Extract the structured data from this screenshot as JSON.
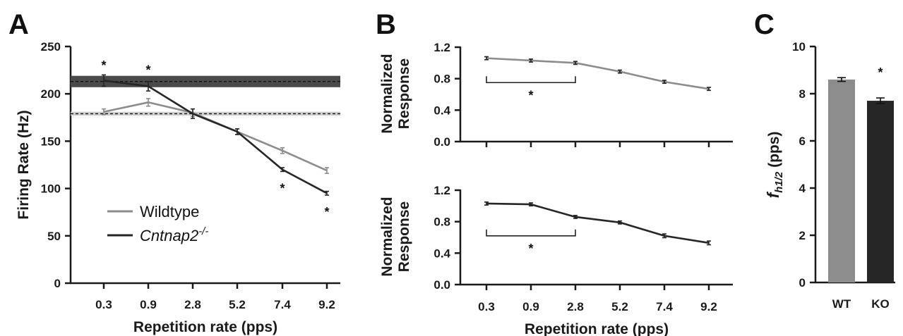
{
  "colors": {
    "wildtype": "#8c8c8c",
    "knockout": "#262626",
    "band_ko": "#4a4a4a",
    "band_wt": "#cfcfcf",
    "bar_wt": "#8c8c8c",
    "bar_ko": "#262626"
  },
  "chart_data": [
    {
      "panel": "A",
      "type": "line",
      "categories": [
        "0.3",
        "0.9",
        "2.8",
        "5.2",
        "7.4",
        "9.2"
      ],
      "xlabel": "Repetition rate (pps)",
      "ylabel": "Firing Rate (Hz)",
      "ylim": [
        0,
        250
      ],
      "yticks": [
        "0",
        "50",
        "100",
        "150",
        "200",
        "250"
      ],
      "series": [
        {
          "name": "Wildtype",
          "values": [
            181,
            191,
            180,
            160,
            140,
            119
          ],
          "errors": [
            3,
            4,
            4,
            3,
            3,
            3
          ]
        },
        {
          "name": "Cntnap2",
          "name_sup": "-/-",
          "values": [
            214,
            208,
            179,
            160,
            120,
            95
          ],
          "errors": [
            6,
            5,
            5,
            3,
            2,
            2
          ]
        }
      ],
      "bands": [
        {
          "series": "Cntnap2",
          "mean": 213,
          "low": 207,
          "high": 219
        },
        {
          "series": "Wildtype",
          "mean": 179,
          "low": 177,
          "high": 181
        }
      ],
      "stars": [
        {
          "category": "0.3",
          "value": 230,
          "label": "*"
        },
        {
          "category": "0.9",
          "value": 225,
          "label": "*"
        },
        {
          "category": "7.4",
          "value": 100,
          "label": "*"
        },
        {
          "category": "9.2",
          "value": 75,
          "label": "*"
        }
      ],
      "legend": "bottom-left",
      "grid": false
    },
    {
      "panel": "B",
      "subpanel": "top",
      "type": "line",
      "categories": [
        "0.3",
        "0.9",
        "2.8",
        "5.2",
        "7.4",
        "9.2"
      ],
      "ylabel": "Normalized Response",
      "ylim": [
        0,
        1.2
      ],
      "yticks": [
        "0.0",
        "0.4",
        "0.8",
        "1.2"
      ],
      "series": [
        {
          "values": [
            1.06,
            1.03,
            1.0,
            0.89,
            0.76,
            0.67
          ],
          "errors": [
            0.01,
            0.01,
            0.01,
            0.01,
            0.01,
            0.01
          ]
        }
      ],
      "bracket": {
        "from": "0.3",
        "to": "2.8",
        "value": 0.75,
        "label": "*"
      }
    },
    {
      "panel": "B",
      "subpanel": "bottom",
      "type": "line",
      "categories": [
        "0.3",
        "0.9",
        "2.8",
        "5.2",
        "7.4",
        "9.2"
      ],
      "xlabel": "Repetition rate (pps)",
      "ylabel": "Normalized Response",
      "ylim": [
        0,
        1.2
      ],
      "yticks": [
        "0.0",
        "0.4",
        "0.8",
        "1.2"
      ],
      "series": [
        {
          "values": [
            1.03,
            1.02,
            0.86,
            0.79,
            0.62,
            0.53
          ],
          "errors": [
            0.01,
            0.01,
            0.01,
            0.01,
            0.015,
            0.015
          ]
        }
      ],
      "bracket": {
        "from": "0.3",
        "to": "2.8",
        "value": 0.62,
        "label": "*"
      }
    },
    {
      "panel": "C",
      "type": "bar",
      "categories": [
        "WT",
        "KO"
      ],
      "values": [
        8.6,
        7.7
      ],
      "errors": [
        0.08,
        0.12
      ],
      "ylabel_main": "f",
      "ylabel_sub": "h1/2",
      "ylabel_unit": " (pps)",
      "ylim": [
        0,
        10
      ],
      "yticks": [
        "0",
        "2",
        "4",
        "6",
        "8",
        "10"
      ],
      "stars": [
        {
          "category": "KO",
          "value": 8.9,
          "label": "*"
        }
      ]
    }
  ],
  "panel_labels": [
    "A",
    "B",
    "C"
  ]
}
